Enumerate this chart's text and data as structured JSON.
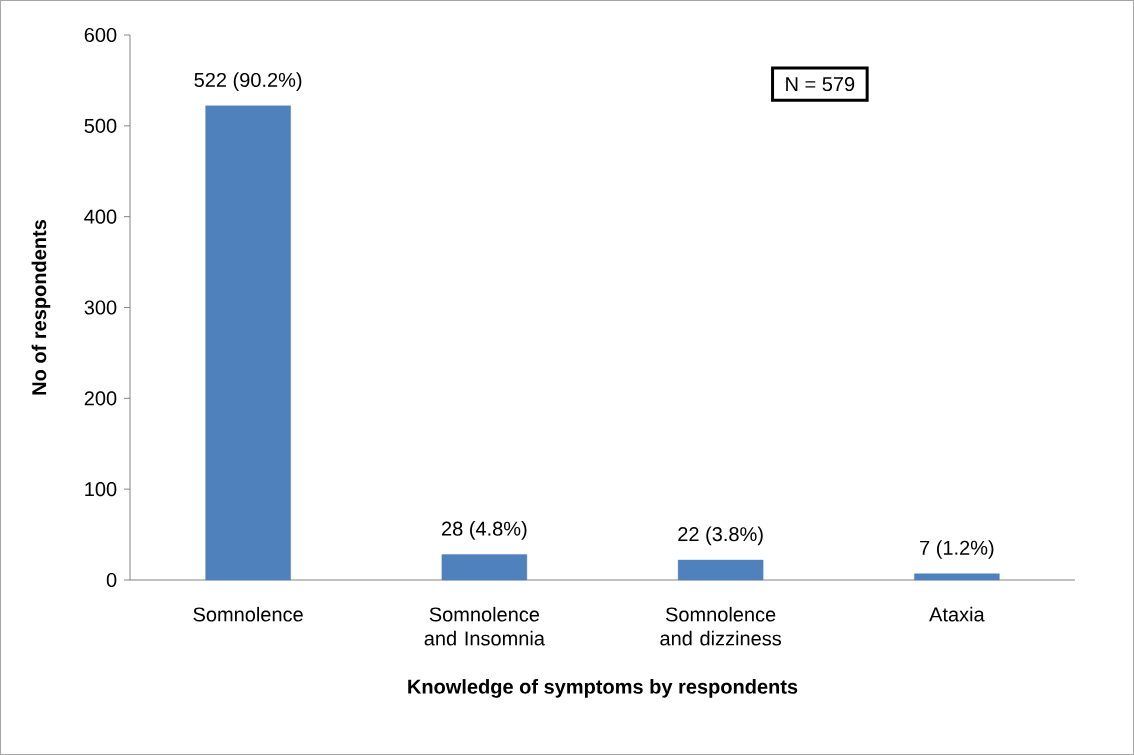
{
  "chart_data": {
    "type": "bar",
    "categories": [
      "Somnolence",
      "Somnolence and Insomnia",
      "Somnolence and dizziness",
      "Ataxia"
    ],
    "values": [
      522,
      28,
      22,
      7
    ],
    "value_labels": [
      "522 (90.2%)",
      "28 (4.8%)",
      "22 (3.8%)",
      "7 (1.2%)"
    ],
    "color": "#4f81bd",
    "ylim": [
      0,
      600
    ],
    "yticks": [
      0,
      100,
      200,
      300,
      400,
      500,
      600
    ],
    "xlabel": "Knowledge of symptoms by respondents",
    "ylabel": "No of respondents",
    "annotations": [
      "N = 579"
    ]
  }
}
